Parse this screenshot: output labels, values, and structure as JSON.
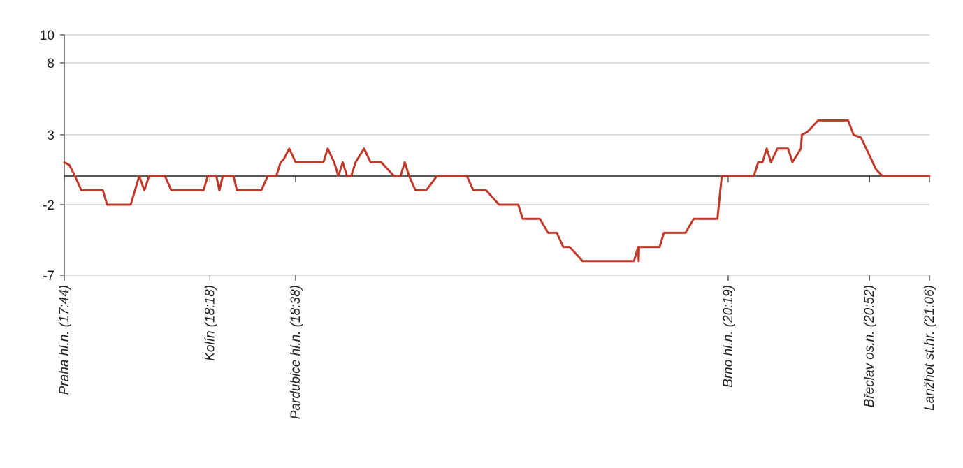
{
  "chart_data": {
    "type": "line",
    "title": "",
    "xlabel": "",
    "ylabel": "",
    "x_unit": "minutes",
    "xlim": [
      0,
      202
    ],
    "ylim": [
      -7,
      10
    ],
    "y_ticks": [
      {
        "value": 10,
        "label": "10"
      },
      {
        "value": 8,
        "label": "8"
      },
      {
        "value": 3,
        "label": "3"
      },
      {
        "value": -2,
        "label": "-2"
      },
      {
        "value": -7,
        "label": "-7"
      }
    ],
    "y_scale": "custom-piecewise",
    "grid": true,
    "stations": [
      {
        "minute": 0,
        "label": "Praha hl.n. (17:44)"
      },
      {
        "minute": 34,
        "label": "Kolín (18:18)"
      },
      {
        "minute": 54,
        "label": "Pardubice hl.n. (18:38)"
      },
      {
        "minute": 155,
        "label": "Brno hl.n. (20:19)"
      },
      {
        "minute": 188,
        "label": "Břeclav os.n. (20:52)"
      },
      {
        "minute": 202,
        "label": "Lanžhot st.hr. (21:06)"
      }
    ],
    "series": [
      {
        "color": "#c0392b",
        "points": [
          [
            0,
            1
          ],
          [
            1.2,
            0.8
          ],
          [
            2.5,
            0
          ],
          [
            4,
            -1
          ],
          [
            9,
            -1
          ],
          [
            10,
            -2
          ],
          [
            15.5,
            -2
          ],
          [
            17.5,
            0
          ],
          [
            18.7,
            -1
          ],
          [
            19.8,
            0
          ],
          [
            23.5,
            0
          ],
          [
            25,
            -1
          ],
          [
            32.5,
            -1
          ],
          [
            33.5,
            0
          ],
          [
            35.5,
            0
          ],
          [
            36.2,
            -1
          ],
          [
            37,
            0
          ],
          [
            39.5,
            0
          ],
          [
            40.3,
            -1
          ],
          [
            46,
            -1
          ],
          [
            47.5,
            0
          ],
          [
            49.5,
            0
          ],
          [
            50.5,
            1
          ],
          [
            51.2,
            1.2
          ],
          [
            52.5,
            2
          ],
          [
            54,
            1
          ],
          [
            60.5,
            1
          ],
          [
            61.5,
            2
          ],
          [
            63,
            1
          ],
          [
            64,
            0
          ],
          [
            65,
            1
          ],
          [
            66,
            0
          ],
          [
            67,
            0
          ],
          [
            68,
            1
          ],
          [
            70,
            2
          ],
          [
            71.5,
            1
          ],
          [
            74,
            1
          ],
          [
            77,
            0
          ],
          [
            78.5,
            0
          ],
          [
            79.5,
            1
          ],
          [
            80.5,
            0
          ],
          [
            82,
            -1
          ],
          [
            84.5,
            -1
          ],
          [
            87,
            0
          ],
          [
            94,
            0
          ],
          [
            95.5,
            -1
          ],
          [
            98.5,
            -1
          ],
          [
            101.5,
            -2
          ],
          [
            106,
            -2
          ],
          [
            107,
            -3
          ],
          [
            111,
            -3
          ],
          [
            113,
            -4
          ],
          [
            115,
            -4
          ],
          [
            116.5,
            -5
          ],
          [
            118,
            -5
          ],
          [
            121,
            -6
          ],
          [
            133,
            -6
          ],
          [
            134,
            -5
          ],
          [
            134.1,
            -6
          ],
          [
            134.2,
            -5
          ],
          [
            139,
            -5
          ],
          [
            140,
            -4
          ],
          [
            145,
            -4
          ],
          [
            147,
            -3
          ],
          [
            152.5,
            -3
          ],
          [
            153.5,
            0
          ],
          [
            161,
            0
          ],
          [
            162,
            1
          ],
          [
            163,
            1
          ],
          [
            164,
            2
          ],
          [
            165,
            1
          ],
          [
            166.5,
            2
          ],
          [
            169,
            2
          ],
          [
            170,
            1
          ],
          [
            172,
            2
          ],
          [
            172.2,
            3
          ],
          [
            173.5,
            3.2
          ],
          [
            176,
            4
          ],
          [
            183,
            4
          ],
          [
            184.3,
            3
          ],
          [
            186,
            2.8
          ],
          [
            188,
            1.5
          ],
          [
            189.5,
            0.5
          ],
          [
            191,
            0
          ],
          [
            202,
            0
          ]
        ]
      }
    ]
  }
}
